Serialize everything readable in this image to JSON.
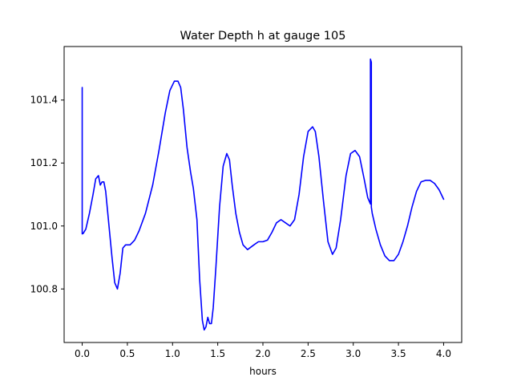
{
  "chart_data": {
    "type": "line",
    "title": "Water Depth h at gauge 105",
    "xlabel": "hours",
    "ylabel": "",
    "xlim": [
      -0.2,
      4.2
    ],
    "ylim": [
      100.63,
      101.57
    ],
    "xticks": [
      0.0,
      0.5,
      1.0,
      1.5,
      2.0,
      2.5,
      3.0,
      3.5,
      4.0
    ],
    "xtick_labels": [
      "0.0",
      "0.5",
      "1.0",
      "1.5",
      "2.0",
      "2.5",
      "3.0",
      "3.5",
      "4.0"
    ],
    "yticks": [
      100.8,
      101.0,
      101.2,
      101.4
    ],
    "ytick_labels": [
      "100.8",
      "101.0",
      "101.2",
      "101.4"
    ],
    "grid": false,
    "line_color": "#0000ff",
    "series": [
      {
        "x": [
          0.0,
          0.0,
          0.0,
          0.01,
          0.04,
          0.08,
          0.12,
          0.15,
          0.18,
          0.2,
          0.22,
          0.24,
          0.26,
          0.28,
          0.3,
          0.33,
          0.36,
          0.39,
          0.42,
          0.45,
          0.48,
          0.5,
          0.53,
          0.58,
          0.63,
          0.7,
          0.78,
          0.85,
          0.92,
          0.97,
          1.02,
          1.06,
          1.09,
          1.12,
          1.16,
          1.2,
          1.23,
          1.27,
          1.3,
          1.33,
          1.35,
          1.37,
          1.39,
          1.41,
          1.43,
          1.45,
          1.48,
          1.52,
          1.56,
          1.6,
          1.63,
          1.66,
          1.7,
          1.74,
          1.78,
          1.83,
          1.9,
          1.95,
          2.0,
          2.05,
          2.1,
          2.15,
          2.2,
          2.25,
          2.3,
          2.35,
          2.4,
          2.45,
          2.5,
          2.55,
          2.58,
          2.62,
          2.67,
          2.72,
          2.77,
          2.81,
          2.86,
          2.92,
          2.97,
          3.02,
          3.07,
          3.12,
          3.16,
          3.19,
          3.19,
          3.2,
          3.2,
          3.21,
          3.25,
          3.3,
          3.35,
          3.4,
          3.45,
          3.5,
          3.55,
          3.6,
          3.65,
          3.7,
          3.75,
          3.8,
          3.85,
          3.9,
          3.95,
          4.0
        ],
        "y": [
          101.44,
          100.99,
          100.975,
          100.976,
          100.99,
          101.04,
          101.1,
          101.15,
          101.16,
          101.13,
          101.14,
          101.14,
          101.11,
          101.05,
          100.99,
          100.9,
          100.82,
          100.8,
          100.85,
          100.93,
          100.94,
          100.94,
          100.94,
          100.955,
          100.985,
          101.04,
          101.13,
          101.24,
          101.36,
          101.43,
          101.46,
          101.46,
          101.44,
          101.37,
          101.25,
          101.17,
          101.12,
          101.02,
          100.83,
          100.7,
          100.67,
          100.68,
          100.71,
          100.69,
          100.69,
          100.74,
          100.87,
          101.06,
          101.19,
          101.23,
          101.21,
          101.13,
          101.04,
          100.98,
          100.94,
          100.925,
          100.94,
          100.95,
          100.95,
          100.955,
          100.98,
          101.01,
          101.02,
          101.01,
          101.0,
          101.02,
          101.1,
          101.22,
          101.3,
          101.315,
          101.3,
          101.22,
          101.08,
          100.95,
          100.91,
          100.93,
          101.02,
          101.16,
          101.23,
          101.24,
          101.22,
          101.15,
          101.09,
          101.07,
          101.53,
          101.52,
          101.06,
          101.04,
          100.99,
          100.94,
          100.905,
          100.89,
          100.89,
          100.91,
          100.95,
          101.0,
          101.06,
          101.11,
          101.14,
          101.145,
          101.145,
          101.135,
          101.115,
          101.085
        ]
      }
    ]
  }
}
